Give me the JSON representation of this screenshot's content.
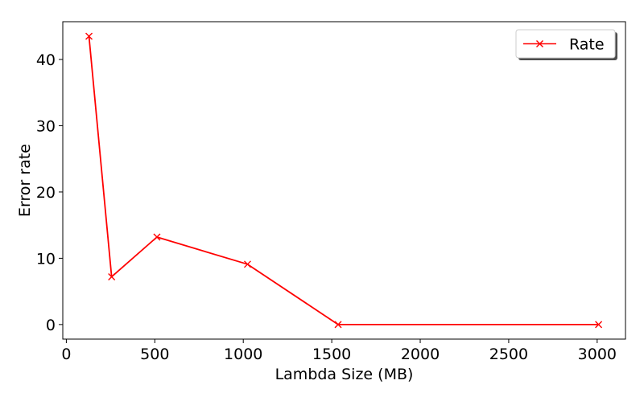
{
  "chart_data": {
    "type": "line",
    "xlabel": "Lambda Size (MB)",
    "ylabel": "Error rate",
    "xlim": [
      -20,
      3160
    ],
    "ylim": [
      -2.2,
      45.7
    ],
    "xticks": [
      0,
      500,
      1000,
      1500,
      2000,
      2500,
      3000
    ],
    "yticks": [
      0,
      10,
      20,
      30,
      40
    ],
    "grid": false,
    "legend": {
      "placement": "top-right"
    },
    "series": [
      {
        "name": "Rate",
        "color": "#ff0000",
        "marker": "x",
        "x": [
          128,
          256,
          512,
          1024,
          1536,
          3008
        ],
        "y": [
          43.5,
          7.2,
          13.2,
          9.1,
          0,
          0
        ]
      }
    ]
  }
}
